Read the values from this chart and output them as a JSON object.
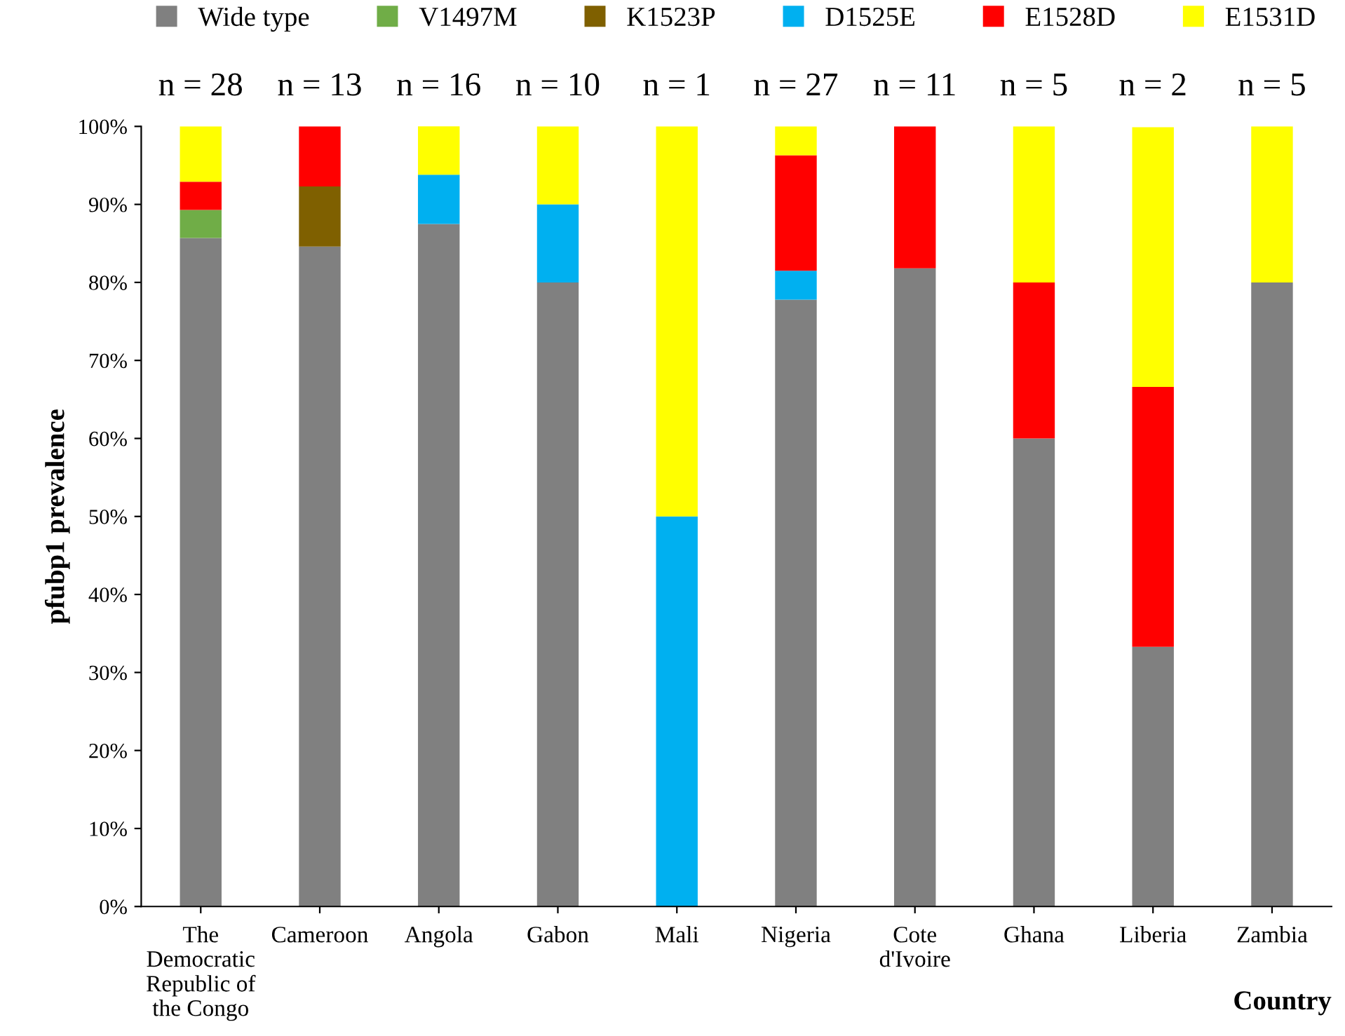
{
  "chart_data": {
    "type": "bar",
    "stacked": true,
    "ylabel": "pfubp1 prevalence",
    "xlabel": "Country",
    "categories": [
      "The Democratic Republic of the Congo",
      "Cameroon",
      "Angola",
      "Gabon",
      "Mali",
      "Nigeria",
      "Cote d'Ivoire",
      "Ghana",
      "Liberia",
      "Zambia"
    ],
    "series": [
      {
        "name": "Wide type",
        "color": "#808080",
        "values": [
          85.7,
          84.6,
          87.5,
          80,
          0,
          77.8,
          81.8,
          60,
          33.3,
          80
        ]
      },
      {
        "name": "V1497M",
        "color": "#70ad47",
        "values": [
          3.6,
          0,
          0,
          0,
          0,
          0,
          0,
          0,
          0,
          0
        ]
      },
      {
        "name": "K1523P",
        "color": "#7f6000",
        "values": [
          0,
          7.7,
          0,
          0,
          0,
          0,
          0,
          0,
          0,
          0
        ]
      },
      {
        "name": "D1525E",
        "color": "#00b0f0",
        "values": [
          0,
          0,
          6.3,
          10,
          50,
          3.7,
          0,
          0,
          0,
          0
        ]
      },
      {
        "name": "E1528D",
        "color": "#ff0000",
        "values": [
          3.6,
          7.7,
          0,
          0,
          0,
          14.8,
          18.2,
          20,
          33.3,
          0
        ]
      },
      {
        "name": "E1531D",
        "color": "#ffff00",
        "values": [
          7.1,
          0,
          6.3,
          10,
          50,
          3.7,
          0,
          20,
          33.3,
          20
        ]
      }
    ],
    "annotations": [
      "n = 28",
      "n = 13",
      "n = 16",
      "n = 10",
      "n = 1",
      "n = 27",
      "n = 11",
      "n = 5",
      "n = 2",
      "n = 5"
    ],
    "ylim": [
      0,
      100
    ],
    "yticks": [
      {
        "value": 0,
        "label": "0%"
      },
      {
        "value": 10,
        "label": "10%"
      },
      {
        "value": 20,
        "label": "20%"
      },
      {
        "value": 30,
        "label": "30%"
      },
      {
        "value": 40,
        "label": "40%"
      },
      {
        "value": 50,
        "label": "50%"
      },
      {
        "value": 60,
        "label": "60%"
      },
      {
        "value": 70,
        "label": "70%"
      },
      {
        "value": 80,
        "label": "80%"
      },
      {
        "value": 90,
        "label": "90%"
      },
      {
        "value": 100,
        "label": "100%"
      }
    ],
    "grid": false,
    "legend": "top"
  }
}
